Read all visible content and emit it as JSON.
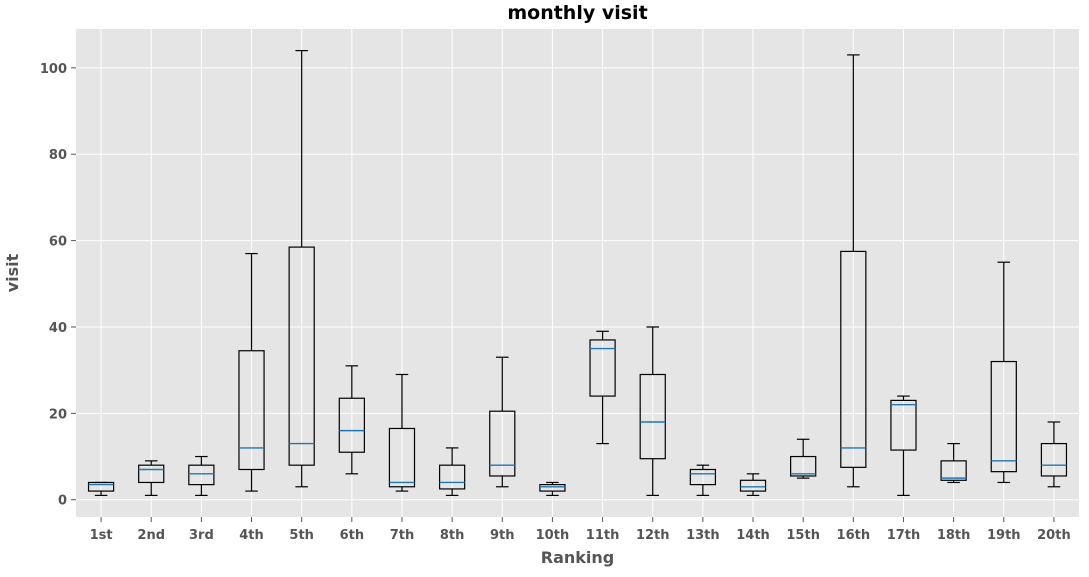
{
  "chart_data": {
    "type": "boxplot",
    "title": "monthly visit",
    "xlabel": "Ranking",
    "ylabel": "visit",
    "ylim": [
      -4,
      109
    ],
    "yticks": [
      0,
      20,
      40,
      60,
      80,
      100
    ],
    "grid": true,
    "background": "#e5e5e5",
    "grid_color": "#ffffff",
    "box_color": "#000000",
    "median_color": "#1f77b4",
    "categories": [
      "1st",
      "2nd",
      "3rd",
      "4th",
      "5th",
      "6th",
      "7th",
      "8th",
      "9th",
      "10th",
      "11th",
      "12th",
      "13th",
      "14th",
      "15th",
      "16th",
      "17th",
      "18th",
      "19th",
      "20th"
    ],
    "boxes": [
      {
        "whislo": 1,
        "q1": 2,
        "med": 3.5,
        "q3": 4,
        "whishi": 4
      },
      {
        "whislo": 1,
        "q1": 4,
        "med": 7,
        "q3": 8,
        "whishi": 9
      },
      {
        "whislo": 1,
        "q1": 3.5,
        "med": 6,
        "q3": 8,
        "whishi": 10
      },
      {
        "whislo": 2,
        "q1": 7,
        "med": 12,
        "q3": 34.5,
        "whishi": 57
      },
      {
        "whislo": 3,
        "q1": 8,
        "med": 13,
        "q3": 58.5,
        "whishi": 104
      },
      {
        "whislo": 6,
        "q1": 11,
        "med": 16,
        "q3": 23.5,
        "whishi": 31
      },
      {
        "whislo": 2,
        "q1": 3,
        "med": 4,
        "q3": 16.5,
        "whishi": 29
      },
      {
        "whislo": 1,
        "q1": 2.5,
        "med": 4,
        "q3": 8,
        "whishi": 12
      },
      {
        "whislo": 3,
        "q1": 5.5,
        "med": 8,
        "q3": 20.5,
        "whishi": 33
      },
      {
        "whislo": 1,
        "q1": 2,
        "med": 3,
        "q3": 3.5,
        "whishi": 4
      },
      {
        "whislo": 13,
        "q1": 24,
        "med": 35,
        "q3": 37,
        "whishi": 39
      },
      {
        "whislo": 1,
        "q1": 9.5,
        "med": 18,
        "q3": 29,
        "whishi": 40
      },
      {
        "whislo": 1,
        "q1": 3.5,
        "med": 6,
        "q3": 7,
        "whishi": 8
      },
      {
        "whislo": 1,
        "q1": 2,
        "med": 3,
        "q3": 4.5,
        "whishi": 6
      },
      {
        "whislo": 5,
        "q1": 5.5,
        "med": 6,
        "q3": 10,
        "whishi": 14
      },
      {
        "whislo": 3,
        "q1": 7.5,
        "med": 12,
        "q3": 57.5,
        "whishi": 103
      },
      {
        "whislo": 1,
        "q1": 11.5,
        "med": 22,
        "q3": 23,
        "whishi": 24
      },
      {
        "whislo": 4,
        "q1": 4.5,
        "med": 5,
        "q3": 9,
        "whishi": 13
      },
      {
        "whislo": 4,
        "q1": 6.5,
        "med": 9,
        "q3": 32,
        "whishi": 55
      },
      {
        "whislo": 3,
        "q1": 5.5,
        "med": 8,
        "q3": 13,
        "whishi": 18
      }
    ]
  }
}
